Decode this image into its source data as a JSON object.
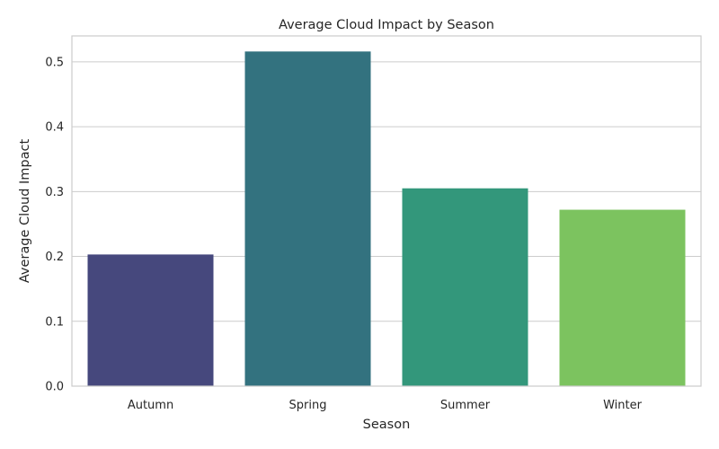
{
  "chart_data": {
    "type": "bar",
    "title": "Average Cloud Impact by Season",
    "xlabel": "Season",
    "ylabel": "Average Cloud Impact",
    "categories": [
      "Autumn",
      "Spring",
      "Summer",
      "Winter"
    ],
    "values": [
      0.203,
      0.516,
      0.305,
      0.272
    ],
    "colors": [
      "#46487d",
      "#33727f",
      "#33977b",
      "#7cc35f"
    ],
    "ylim": [
      0,
      0.54
    ],
    "yticks": [
      "0.0",
      "0.1",
      "0.2",
      "0.3",
      "0.4",
      "0.5"
    ],
    "grid": "horizontal"
  }
}
